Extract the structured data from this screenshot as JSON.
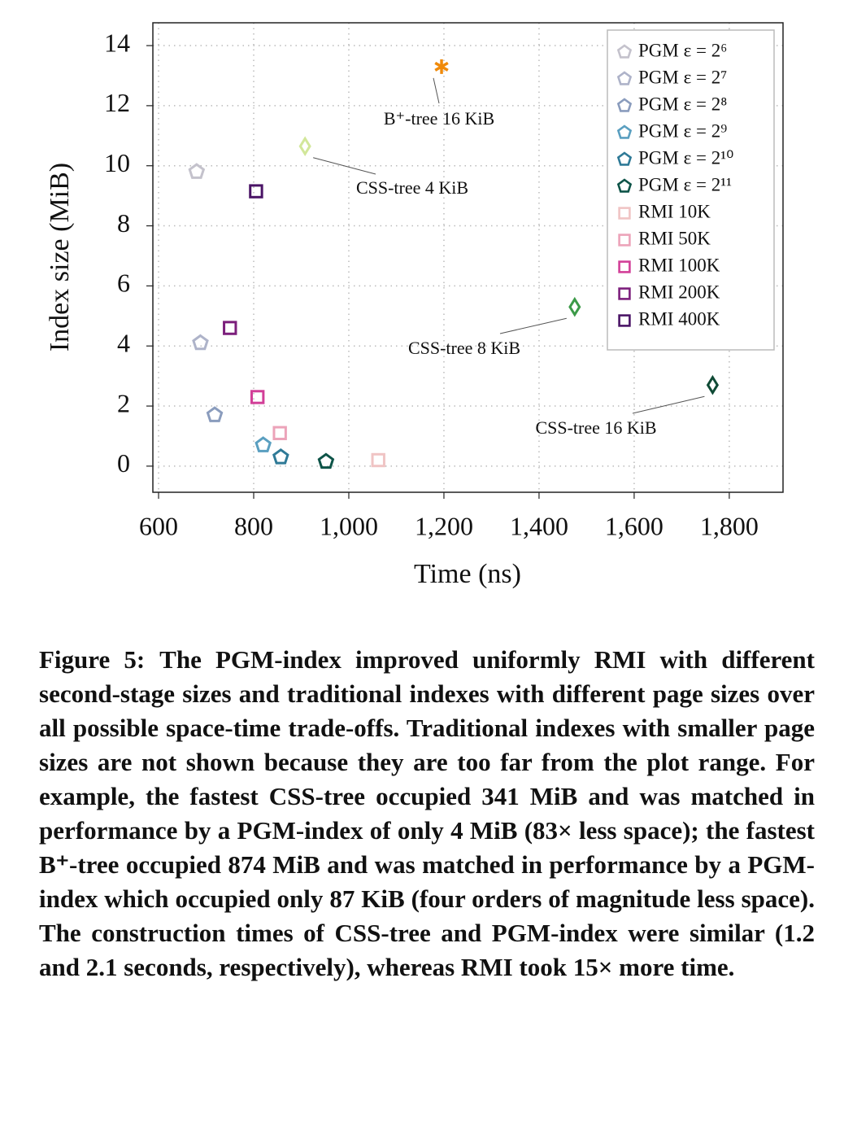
{
  "chart_data": {
    "type": "scatter",
    "x_label": "Time (ns)",
    "y_label": "Index size (MiB)",
    "xlim": [
      588,
      1913
    ],
    "ylim": [
      -0.87,
      14.76
    ],
    "xticks": [
      600,
      800,
      {
        "value": 1000,
        "label": "1,000"
      },
      {
        "value": 1200,
        "label": "1,200"
      },
      {
        "value": 1400,
        "label": "1,400"
      },
      {
        "value": 1600,
        "label": "1,600"
      },
      {
        "value": 1800,
        "label": "1,800"
      }
    ],
    "yticks": [
      0,
      2,
      4,
      6,
      8,
      10,
      12,
      14
    ],
    "grid": true,
    "legend": "upper right",
    "series": [
      {
        "name": "PGM ε = 2⁶",
        "color": "#c4c2cc",
        "marker": "pentagon",
        "x": [
          680
        ],
        "y": [
          9.8
        ]
      },
      {
        "name": "PGM ε = 2⁷",
        "color": "#aeb3c9",
        "marker": "pentagon",
        "x": [
          688
        ],
        "y": [
          4.1
        ]
      },
      {
        "name": "PGM ε = 2⁸",
        "color": "#8a9cbd",
        "marker": "pentagon",
        "x": [
          718
        ],
        "y": [
          1.7
        ]
      },
      {
        "name": "PGM ε = 2⁹",
        "color": "#5a9fc0",
        "marker": "pentagon",
        "x": [
          820
        ],
        "y": [
          0.7
        ]
      },
      {
        "name": "PGM ε = 2¹⁰",
        "color": "#2f7a97",
        "marker": "pentagon",
        "x": [
          857
        ],
        "y": [
          0.3
        ]
      },
      {
        "name": "PGM ε = 2¹¹",
        "color": "#0e5448",
        "marker": "pentagon",
        "x": [
          952
        ],
        "y": [
          0.15
        ]
      },
      {
        "name": "RMI 10K",
        "color": "#f0c4c4",
        "marker": "square",
        "x": [
          1062
        ],
        "y": [
          0.2
        ]
      },
      {
        "name": "RMI 50K",
        "color": "#eca3b9",
        "marker": "square",
        "x": [
          855
        ],
        "y": [
          1.1
        ]
      },
      {
        "name": "RMI 100K",
        "color": "#d23f98",
        "marker": "square",
        "x": [
          808
        ],
        "y": [
          2.3
        ]
      },
      {
        "name": "RMI 200K",
        "color": "#7c1f7c",
        "marker": "square",
        "x": [
          750
        ],
        "y": [
          4.6
        ]
      },
      {
        "name": "RMI 400K",
        "color": "#4a1466",
        "marker": "square",
        "x": [
          805
        ],
        "y": [
          9.15
        ]
      },
      {
        "label": "CSS-tree 4 KiB",
        "color": "#d2e79a",
        "marker": "diamond",
        "x": [
          908
        ],
        "y": [
          10.65
        ]
      },
      {
        "label": "CSS-tree 8 KiB",
        "color": "#3c9a48",
        "marker": "diamond",
        "x": [
          1475
        ],
        "y": [
          5.3
        ]
      },
      {
        "label": "CSS-tree 16 KiB",
        "color": "#0f4a35",
        "marker": "diamond",
        "x": [
          1765
        ],
        "y": [
          2.7
        ]
      },
      {
        "label": "B⁺-tree 16 KiB",
        "color": "#f08a0a",
        "marker": "star",
        "x": [
          1195
        ],
        "y": [
          13.3
        ]
      }
    ]
  },
  "caption": {
    "label": "Figure 5:",
    "text": "The PGM-index improved uniformly RMI with different second-stage sizes and traditional indexes with different page sizes over all possible space-time trade-offs. Traditional indexes with smaller page sizes are not shown because they are too far from the plot range. For example, the fastest CSS-tree occupied 341 MiB and was matched in performance by a PGM-index of only 4 MiB (83× less space); the fastest B⁺-tree occupied 874 MiB and was matched in performance by a PGM-index which occupied only 87 KiB (four orders of magnitude less space). The construction times of CSS-tree and PGM-index were similar (1.2 and 2.1 seconds, respectively), whereas RMI took 15× more time."
  }
}
